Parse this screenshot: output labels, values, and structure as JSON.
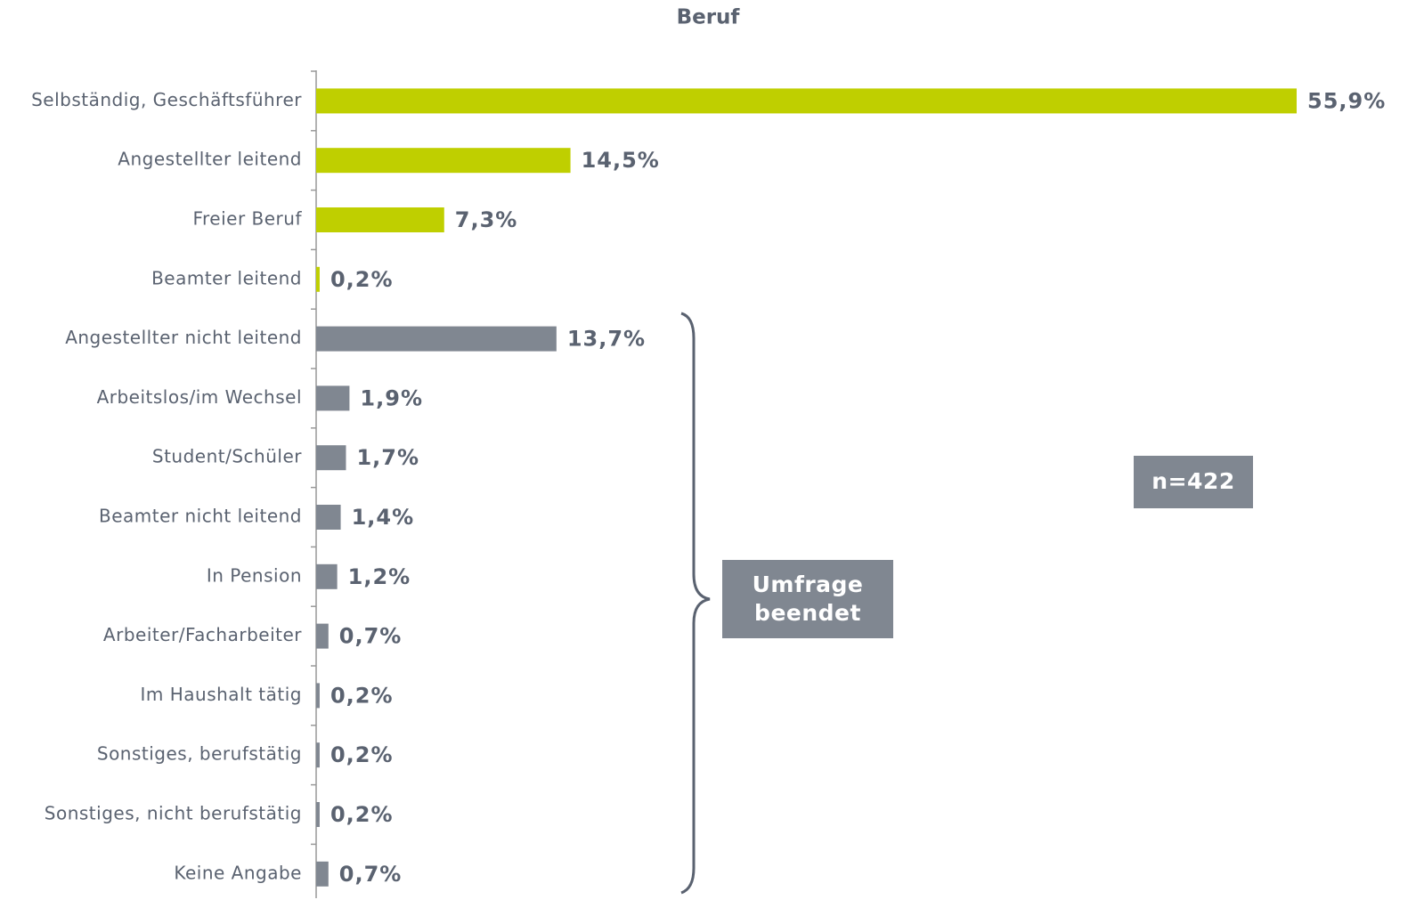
{
  "chart_data": {
    "type": "bar",
    "orientation": "horizontal",
    "title": "Beruf",
    "categories": [
      "Selbständig, Geschäftsführer",
      "Angestellter leitend",
      "Freier Beruf",
      "Beamter leitend",
      "Angestellter nicht leitend",
      "Arbeitslos/im Wechsel",
      "Student/Schüler",
      "Beamter nicht leitend",
      "In Pension",
      "Arbeiter/Facharbeiter",
      "Im Haushalt tätig",
      "Sonstiges, berufstätig",
      "Sonstiges, nicht berufstätig",
      "Keine Angabe"
    ],
    "values": [
      55.9,
      14.5,
      7.3,
      0.2,
      13.7,
      1.9,
      1.7,
      1.4,
      1.2,
      0.7,
      0.2,
      0.2,
      0.2,
      0.7
    ],
    "value_labels": [
      "55,9%",
      "14,5%",
      "7,3%",
      "0,2%",
      "13,7%",
      "1,9%",
      "1,7%",
      "1,4%",
      "1,2%",
      "0,7%",
      "0,2%",
      "0,2%",
      "0,2%",
      "0,7%"
    ],
    "colors": [
      "#bfcf00",
      "#bfcf00",
      "#bfcf00",
      "#bfcf00",
      "#808791",
      "#808791",
      "#808791",
      "#808791",
      "#808791",
      "#808791",
      "#808791",
      "#808791",
      "#808791",
      "#808791"
    ],
    "xlim": [
      0,
      55.9
    ],
    "annotations": [
      [
        "Umfrage",
        "beendet"
      ],
      [
        "n=422"
      ]
    ]
  }
}
